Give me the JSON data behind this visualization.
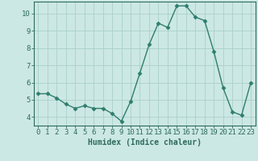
{
  "x": [
    0,
    1,
    2,
    3,
    4,
    5,
    6,
    7,
    8,
    9,
    10,
    11,
    12,
    13,
    14,
    15,
    16,
    17,
    18,
    19,
    20,
    21,
    22,
    23
  ],
  "y": [
    5.35,
    5.35,
    5.1,
    4.75,
    4.5,
    4.65,
    4.5,
    4.5,
    4.2,
    3.75,
    4.9,
    6.55,
    8.2,
    9.45,
    9.2,
    10.45,
    10.45,
    9.8,
    9.6,
    7.8,
    5.7,
    4.3,
    4.1,
    6.0
  ],
  "line_color": "#2e7d6e",
  "marker": "D",
  "markersize": 2.5,
  "linewidth": 1.0,
  "bg_color": "#cce8e4",
  "grid_color": "#aacfcc",
  "xlabel": "Humidex (Indice chaleur)",
  "xlim": [
    -0.5,
    23.5
  ],
  "ylim": [
    3.5,
    10.7
  ],
  "yticks": [
    4,
    5,
    6,
    7,
    8,
    9,
    10
  ],
  "xticks": [
    0,
    1,
    2,
    3,
    4,
    5,
    6,
    7,
    8,
    9,
    10,
    11,
    12,
    13,
    14,
    15,
    16,
    17,
    18,
    19,
    20,
    21,
    22,
    23
  ],
  "xlabel_fontsize": 7,
  "tick_fontsize": 6.5,
  "axis_color": "#2e6b5e",
  "tick_color": "#2e6b5e"
}
